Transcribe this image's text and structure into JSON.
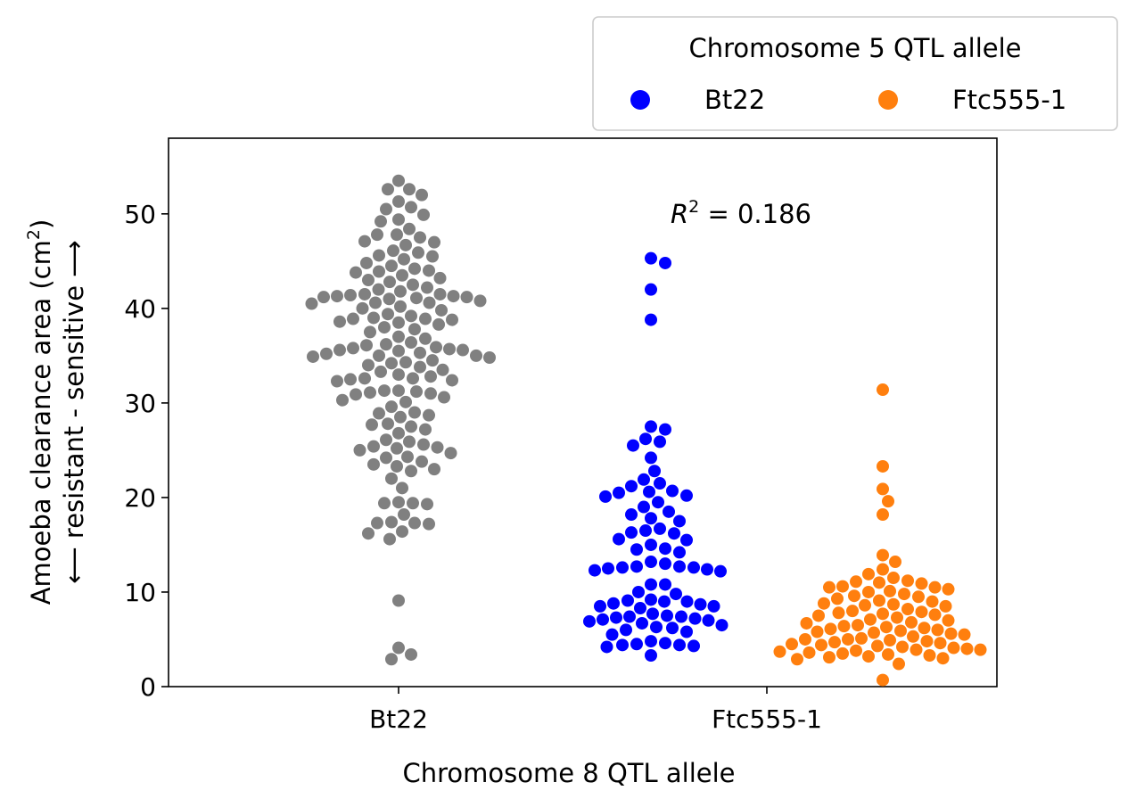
{
  "chart_data": {
    "type": "scatter",
    "subtype": "swarm",
    "xlabel": "Chromosome 8 QTL allele",
    "ylabel_line1": "Amoeba clearance area (cm",
    "ylabel_sup": "2",
    "ylabel_line1_end": ")",
    "ylabel_line2": "⟵ resistant - sensitive ⟶",
    "categories": [
      "Bt22",
      "Ftc555-1"
    ],
    "ylim": [
      0,
      58
    ],
    "yticks": [
      0,
      10,
      20,
      30,
      40,
      50
    ],
    "grid": false,
    "legend": {
      "title": "Chromosome 5 QTL allele",
      "placement": "top-right, outside plot",
      "entries": [
        {
          "label": "Bt22",
          "color": "#0000ff"
        },
        {
          "label": "Ftc555-1",
          "color": "#ff7f0e"
        }
      ]
    },
    "annotation": {
      "r_symbol": "R",
      "sup": "2",
      "text": " = 0.186"
    },
    "series": [
      {
        "name": "",
        "category": "Bt22",
        "hue": "",
        "color": "#808080",
        "values": [
          53.5,
          52.6,
          52.6,
          52.0,
          51.3,
          50.7,
          50.5,
          49.9,
          49.4,
          49.2,
          48.4,
          47.8,
          47.8,
          47.5,
          47.1,
          47.0,
          46.7,
          46.1,
          45.9,
          45.6,
          45.5,
          45.2,
          44.8,
          44.5,
          44.2,
          44.0,
          43.9,
          43.8,
          43.5,
          43.2,
          43.0,
          42.8,
          42.5,
          42.2,
          42.0,
          41.8,
          41.5,
          41.5,
          41.4,
          41.3,
          41.3,
          41.2,
          41.2,
          41.1,
          41.0,
          40.8,
          40.6,
          40.6,
          40.5,
          40.2,
          40.0,
          39.8,
          39.4,
          39.2,
          39.0,
          38.9,
          38.9,
          38.8,
          38.6,
          38.5,
          38.3,
          38.0,
          37.8,
          37.5,
          37.0,
          36.8,
          36.4,
          36.2,
          36.1,
          35.9,
          35.8,
          35.7,
          35.6,
          35.6,
          35.5,
          35.3,
          35.2,
          35.0,
          35.0,
          34.9,
          34.8,
          34.5,
          34.3,
          34.2,
          34.0,
          33.8,
          33.5,
          33.3,
          33.0,
          32.8,
          32.6,
          32.6,
          32.5,
          32.4,
          32.3,
          31.3,
          31.3,
          31.2,
          31.1,
          31.0,
          30.9,
          30.6,
          30.3,
          30.1,
          29.6,
          29.0,
          28.9,
          28.7,
          28.5,
          27.8,
          27.7,
          27.5,
          27.2,
          26.8,
          26.1,
          25.9,
          25.6,
          25.4,
          25.3,
          25.2,
          25.0,
          24.7,
          24.3,
          24.2,
          23.8,
          23.5,
          23.3,
          23.0,
          22.8,
          22.0,
          21.0,
          19.5,
          19.4,
          19.4,
          19.3,
          18.2,
          17.4,
          17.3,
          17.3,
          17.2,
          16.4,
          16.2,
          15.6,
          9.1,
          4.1,
          3.4,
          2.9
        ]
      },
      {
        "name": "Bt22",
        "category": "Ftc555-1",
        "hue": "Bt22",
        "color": "#0000ff",
        "values": [
          45.3,
          44.8,
          42.0,
          38.8,
          27.5,
          27.2,
          26.2,
          25.9,
          25.5,
          24.2,
          22.8,
          21.9,
          21.5,
          21.2,
          20.7,
          20.6,
          20.5,
          20.2,
          20.1,
          19.5,
          19.0,
          18.5,
          18.2,
          17.8,
          17.5,
          16.7,
          16.5,
          16.3,
          16.2,
          15.6,
          15.5,
          15.0,
          14.6,
          14.5,
          14.2,
          13.2,
          13.0,
          12.7,
          12.7,
          12.6,
          12.6,
          12.5,
          12.4,
          12.3,
          12.2,
          10.8,
          10.8,
          10.0,
          9.8,
          9.2,
          9.1,
          9.0,
          9.0,
          8.8,
          8.7,
          8.5,
          8.5,
          8.3,
          7.7,
          7.5,
          7.4,
          7.4,
          7.3,
          7.2,
          7.1,
          7.0,
          6.9,
          6.7,
          6.5,
          6.3,
          6.2,
          6.0,
          5.8,
          5.5,
          4.8,
          4.6,
          4.5,
          4.4,
          4.4,
          4.3,
          4.2,
          3.3
        ]
      },
      {
        "name": "Ftc555-1",
        "category": "Ftc555-1",
        "hue": "Ftc555-1",
        "color": "#ff7f0e",
        "values": [
          31.4,
          23.3,
          20.9,
          19.6,
          18.2,
          13.9,
          13.2,
          12.4,
          11.9,
          11.5,
          11.2,
          11.1,
          11.0,
          10.9,
          10.6,
          10.5,
          10.5,
          10.3,
          10.1,
          10.0,
          9.8,
          9.6,
          9.5,
          9.3,
          9.1,
          9.0,
          8.8,
          8.7,
          8.6,
          8.5,
          8.2,
          8.0,
          7.9,
          7.8,
          7.7,
          7.6,
          7.5,
          7.3,
          7.1,
          7.0,
          6.8,
          6.7,
          6.5,
          6.4,
          6.3,
          6.2,
          6.1,
          6.0,
          5.9,
          5.8,
          5.7,
          5.6,
          5.5,
          5.3,
          5.1,
          5.0,
          5.0,
          4.9,
          4.8,
          4.7,
          4.6,
          4.5,
          4.4,
          4.3,
          4.2,
          4.1,
          4.0,
          3.9,
          3.9,
          3.8,
          3.7,
          3.6,
          3.5,
          3.4,
          3.3,
          3.2,
          3.1,
          3.0,
          2.9,
          2.4,
          0.7
        ]
      }
    ]
  }
}
